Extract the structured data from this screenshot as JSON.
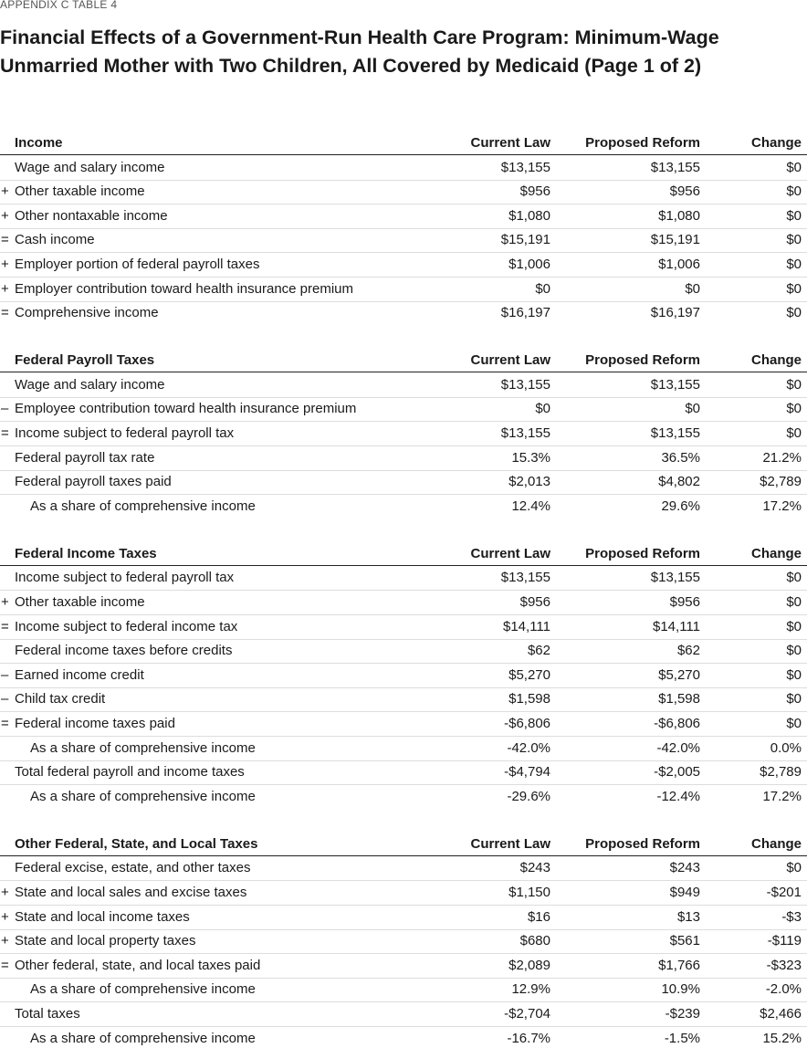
{
  "header": {
    "kicker": "APPENDIX C TABLE 4",
    "title": "Financial Effects of a Government-Run Health Care Program: Minimum-Wage Unmarried Mother with Two Children, All Covered by Medicaid (Page 1 of 2)"
  },
  "sections": [
    {
      "heading": "Income",
      "columns": [
        "Current Law",
        "Proposed Reform",
        "Change"
      ],
      "rows": [
        {
          "label": "Wage and salary income",
          "cells": [
            "$13,155",
            "$13,155",
            "$0"
          ]
        },
        {
          "prefix": "+",
          "label": "Other taxable income",
          "cells": [
            "$956",
            "$956",
            "$0"
          ]
        },
        {
          "prefix": "+",
          "label": "Other nontaxable income",
          "cells": [
            "$1,080",
            "$1,080",
            "$0"
          ]
        },
        {
          "prefix": "=",
          "label": "Cash income",
          "cells": [
            "$15,191",
            "$15,191",
            "$0"
          ]
        },
        {
          "prefix": "+",
          "label": "Employer portion of federal payroll taxes",
          "cells": [
            "$1,006",
            "$1,006",
            "$0"
          ]
        },
        {
          "prefix": "+",
          "label": "Employer contribution toward health insurance premium",
          "cells": [
            "$0",
            "$0",
            "$0"
          ]
        },
        {
          "prefix": "=",
          "label": "Comprehensive income",
          "cells": [
            "$16,197",
            "$16,197",
            "$0"
          ]
        }
      ]
    },
    {
      "heading": "Federal Payroll Taxes",
      "columns": [
        "Current Law",
        "Proposed Reform",
        "Change"
      ],
      "rows": [
        {
          "label": "Wage and salary income",
          "cells": [
            "$13,155",
            "$13,155",
            "$0"
          ]
        },
        {
          "prefix": "–",
          "label": "Employee contribution toward health insurance premium",
          "cells": [
            "$0",
            "$0",
            "$0"
          ]
        },
        {
          "prefix": "=",
          "label": "Income subject to federal payroll tax",
          "cells": [
            "$13,155",
            "$13,155",
            "$0"
          ]
        },
        {
          "label": "Federal payroll tax rate",
          "cells": [
            "15.3%",
            "36.5%",
            "21.2%"
          ]
        },
        {
          "label": "Federal payroll taxes paid",
          "cells": [
            "$2,013",
            "$4,802",
            "$2,789"
          ]
        },
        {
          "label": "As a share of comprehensive income",
          "indent": true,
          "cells": [
            "12.4%",
            "29.6%",
            "17.2%"
          ]
        }
      ]
    },
    {
      "heading": "Federal Income Taxes",
      "columns": [
        "Current Law",
        "Proposed Reform",
        "Change"
      ],
      "rows": [
        {
          "label": "Income subject to federal payroll tax",
          "cells": [
            "$13,155",
            "$13,155",
            "$0"
          ]
        },
        {
          "prefix": "+",
          "label": "Other taxable income",
          "cells": [
            "$956",
            "$956",
            "$0"
          ]
        },
        {
          "prefix": "=",
          "label": "Income subject to federal income tax",
          "cells": [
            "$14,111",
            "$14,111",
            "$0"
          ]
        },
        {
          "label": "Federal income taxes before credits",
          "cells": [
            "$62",
            "$62",
            "$0"
          ]
        },
        {
          "prefix": "–",
          "label": "Earned income credit",
          "cells": [
            "$5,270",
            "$5,270",
            "$0"
          ]
        },
        {
          "prefix": "–",
          "label": "Child tax credit",
          "cells": [
            "$1,598",
            "$1,598",
            "$0"
          ]
        },
        {
          "prefix": "=",
          "label": "Federal income taxes paid",
          "cells": [
            "-$6,806",
            "-$6,806",
            "$0"
          ]
        },
        {
          "label": "As a share of comprehensive income",
          "indent": true,
          "cells": [
            "-42.0%",
            "-42.0%",
            "0.0%"
          ]
        },
        {
          "label": "Total federal payroll and income taxes",
          "cells": [
            "-$4,794",
            "-$2,005",
            "$2,789"
          ]
        },
        {
          "label": "As a share of comprehensive income",
          "indent": true,
          "cells": [
            "-29.6%",
            "-12.4%",
            "17.2%"
          ]
        }
      ]
    },
    {
      "heading": "Other Federal, State, and Local Taxes",
      "columns": [
        "Current Law",
        "Proposed Reform",
        "Change"
      ],
      "rows": [
        {
          "label": "Federal excise, estate, and other taxes",
          "cells": [
            "$243",
            "$243",
            "$0"
          ]
        },
        {
          "prefix": "+",
          "label": "State and local sales and excise taxes",
          "cells": [
            "$1,150",
            "$949",
            "-$201"
          ]
        },
        {
          "prefix": "+",
          "label": "State and local income taxes",
          "cells": [
            "$16",
            "$13",
            "-$3"
          ]
        },
        {
          "prefix": "+",
          "label": "State and local property taxes",
          "cells": [
            "$680",
            "$561",
            "-$119"
          ]
        },
        {
          "prefix": "=",
          "label": "Other federal, state, and local taxes paid",
          "cells": [
            "$2,089",
            "$1,766",
            "-$323"
          ]
        },
        {
          "label": "As a share of comprehensive income",
          "indent": true,
          "cells": [
            "12.9%",
            "10.9%",
            "-2.0%"
          ]
        },
        {
          "label": "Total taxes",
          "cells": [
            "-$2,704",
            "-$239",
            "$2,466"
          ]
        },
        {
          "label": "As a share of comprehensive income",
          "indent": true,
          "cells": [
            "-16.7%",
            "-1.5%",
            "15.2%"
          ]
        }
      ]
    }
  ]
}
